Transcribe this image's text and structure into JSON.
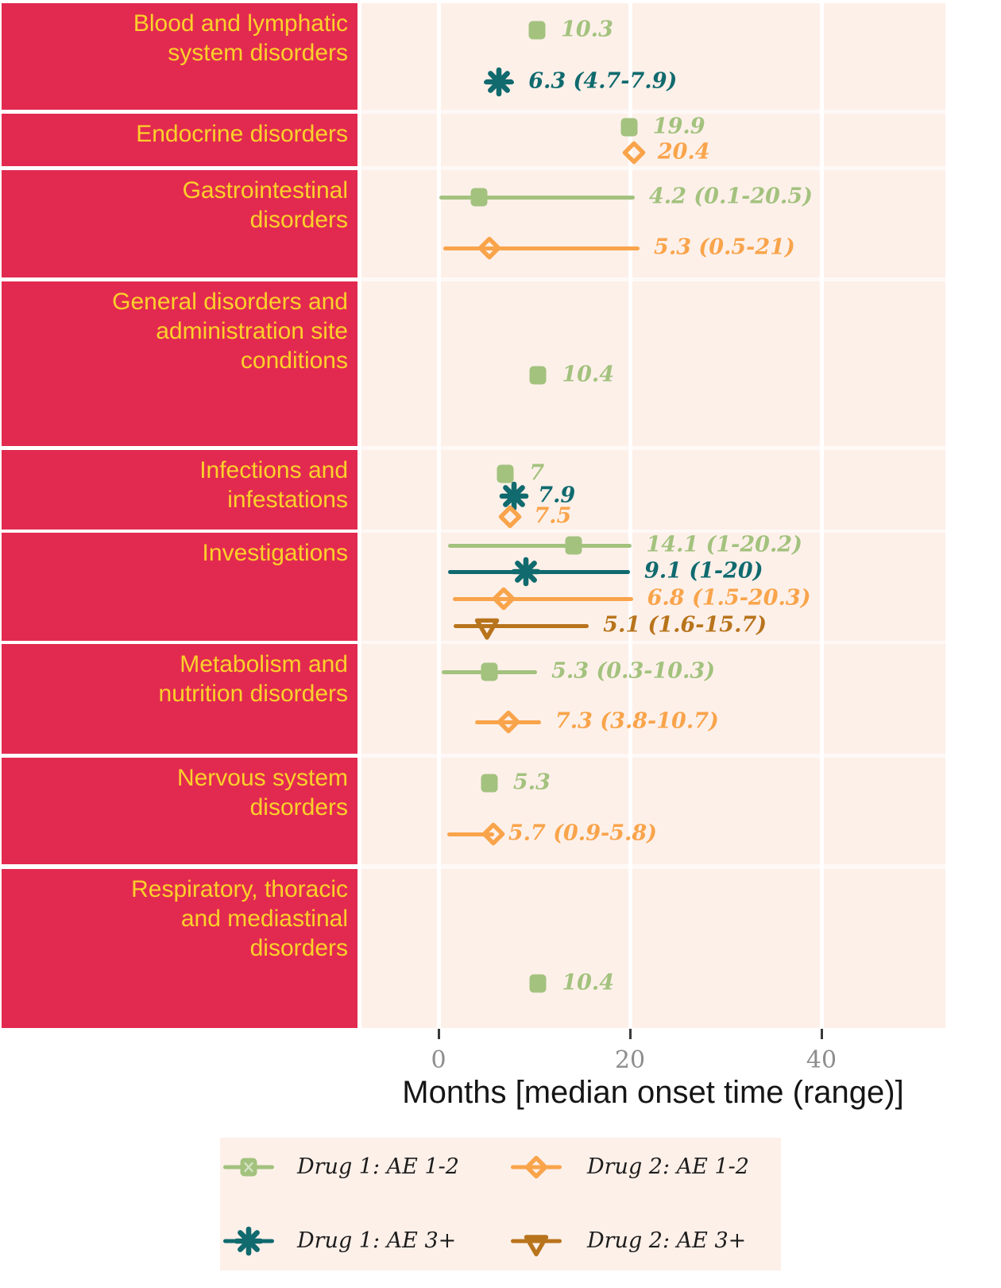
{
  "chart_data": {
    "type": "scatter",
    "subtype": "median-with-range (forest plot)",
    "title": "",
    "xlabel": "Months [median onset time (range)]",
    "x_ticks": [
      "0",
      "20",
      "40"
    ],
    "x_tick_values": [
      0,
      20,
      40
    ],
    "xlim": [
      -8,
      53
    ],
    "grid": "white vertical lines at ticks on pink panel",
    "legend_position": "bottom",
    "colors": {
      "category_box": "#e22a50",
      "category_text": "#fbd12a",
      "plot_background": "#fdf0e9",
      "legend_background": "#fdf0e9",
      "gridline": "#ffffff",
      "tick_mark": "#3a3a3a",
      "tick_label": "#8d8d8d",
      "axis_title": "#151515",
      "legend_text": "#1c1c1c",
      "page_background": "#ffffff"
    },
    "series": [
      {
        "id": "d1ae12",
        "label": "Drug 1: AE 1-2",
        "marker": "square",
        "color": "#a3c27e"
      },
      {
        "id": "d1ae3",
        "label": "Drug 1: AE 3+",
        "marker": "asterisk",
        "color": "#106a6e"
      },
      {
        "id": "d2ae12",
        "label": "Drug 2: AE 1-2",
        "marker": "diamond",
        "color": "#f9a44b"
      },
      {
        "id": "d2ae3",
        "label": "Drug 2: AE 3+",
        "marker": "triangle",
        "color": "#b8741c"
      }
    ],
    "legend_order": [
      [
        "d1ae12",
        "d2ae12"
      ],
      [
        "d1ae3",
        "d2ae3"
      ]
    ],
    "categories": [
      {
        "name": "Blood and lymphatic system disorders",
        "label_lines": [
          "Blood and lymphatic",
          "system disorders"
        ],
        "points": [
          {
            "series": "d1ae12",
            "median": 10.3,
            "label": "10.3"
          },
          {
            "series": "d1ae3",
            "median": 6.3,
            "lo": 4.7,
            "hi": 7.9,
            "label": "6.3 (4.7-7.9)"
          }
        ]
      },
      {
        "name": "Endocrine disorders",
        "label_lines": [
          "Endocrine disorders"
        ],
        "points": [
          {
            "series": "d1ae12",
            "median": 19.9,
            "label": "19.9"
          },
          {
            "series": "d2ae12",
            "median": 20.4,
            "label": "20.4"
          }
        ]
      },
      {
        "name": "Gastrointestinal disorders",
        "label_lines": [
          "Gastrointestinal",
          "disorders"
        ],
        "points": [
          {
            "series": "d1ae12",
            "median": 4.2,
            "lo": 0.1,
            "hi": 20.5,
            "label": "4.2 (0.1-20.5)"
          },
          {
            "series": "d2ae12",
            "median": 5.3,
            "lo": 0.5,
            "hi": 21,
            "label": "5.3 (0.5-21)"
          }
        ]
      },
      {
        "name": "General disorders and administration site conditions",
        "label_lines": [
          "General disorders and",
          "administration site",
          "conditions"
        ],
        "points": [
          {
            "series": "d1ae12",
            "median": 10.4,
            "label": "10.4"
          }
        ]
      },
      {
        "name": "Infections and infestations",
        "label_lines": [
          "Infections and",
          "infestations"
        ],
        "points": [
          {
            "series": "d1ae12",
            "median": 7,
            "label": "7"
          },
          {
            "series": "d1ae3",
            "median": 7.9,
            "label": "7.9"
          },
          {
            "series": "d2ae12",
            "median": 7.5,
            "label": "7.5"
          }
        ]
      },
      {
        "name": "Investigations",
        "label_lines": [
          "Investigations"
        ],
        "points": [
          {
            "series": "d1ae12",
            "median": 14.1,
            "lo": 1,
            "hi": 20.2,
            "label": "14.1 (1-20.2)"
          },
          {
            "series": "d1ae3",
            "median": 9.1,
            "lo": 1,
            "hi": 20,
            "label": "9.1 (1-20)"
          },
          {
            "series": "d2ae12",
            "median": 6.8,
            "lo": 1.5,
            "hi": 20.3,
            "label": "6.8 (1.5-20.3)"
          },
          {
            "series": "d2ae3",
            "median": 5.1,
            "lo": 1.6,
            "hi": 15.7,
            "label": "5.1 (1.6-15.7)"
          }
        ]
      },
      {
        "name": "Metabolism and nutrition disorders",
        "label_lines": [
          "Metabolism and",
          "nutrition disorders"
        ],
        "points": [
          {
            "series": "d1ae12",
            "median": 5.3,
            "lo": 0.3,
            "hi": 10.3,
            "label": "5.3 (0.3-10.3)"
          },
          {
            "series": "d2ae12",
            "median": 7.3,
            "lo": 3.8,
            "hi": 10.7,
            "label": "7.3 (3.8-10.7)"
          }
        ]
      },
      {
        "name": "Nervous system disorders",
        "label_lines": [
          "Nervous system",
          "disorders"
        ],
        "points": [
          {
            "series": "d1ae12",
            "median": 5.3,
            "label": "5.3"
          },
          {
            "series": "d2ae12",
            "median": 5.7,
            "lo": 0.9,
            "hi": 5.8,
            "label": "5.7 (0.9-5.8)"
          }
        ]
      },
      {
        "name": "Respiratory, thoracic and mediastinal disorders",
        "label_lines": [
          "Respiratory, thoracic",
          "and mediastinal",
          "disorders"
        ],
        "points": [
          {
            "series": "d1ae12",
            "median": 10.4,
            "label": "10.4"
          }
        ]
      }
    ]
  }
}
